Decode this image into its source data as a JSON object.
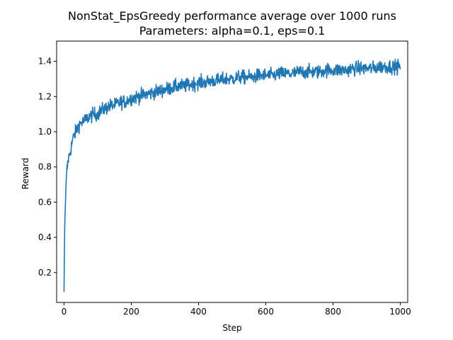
{
  "chart_data": {
    "type": "line",
    "title": "NonStat_EpsGreedy performance average over 1000 runs",
    "subtitle": "Parameters: alpha=0.1, eps=0.1",
    "xlabel": "Step",
    "ylabel": "Reward",
    "xlim": [
      -22,
      1022
    ],
    "ylim": [
      0.03,
      1.515
    ],
    "xticks": [
      0,
      200,
      400,
      600,
      800,
      1000
    ],
    "yticks": [
      0.2,
      0.4,
      0.6,
      0.8,
      1.0,
      1.2,
      1.4
    ],
    "ytick_labels": [
      "0.2",
      "0.4",
      "0.6",
      "0.8",
      "1.0",
      "1.2",
      "1.4"
    ],
    "grid": false,
    "line_color": "#1f77b4",
    "series": [
      {
        "x": [
          0,
          1,
          2,
          3,
          4,
          5,
          6,
          8,
          10,
          12,
          15,
          18,
          20,
          25,
          30,
          35,
          40,
          45,
          50,
          60,
          70,
          80,
          90,
          100,
          110,
          120,
          130,
          140,
          150,
          160,
          170,
          180,
          190,
          200,
          220,
          240,
          260,
          280,
          300,
          320,
          340,
          360,
          380,
          400,
          420,
          440,
          460,
          480,
          500,
          520,
          540,
          560,
          580,
          600,
          620,
          640,
          660,
          680,
          700,
          720,
          740,
          760,
          780,
          800,
          820,
          840,
          860,
          880,
          900,
          920,
          940,
          960,
          980,
          1000
        ],
        "y": [
          0.09,
          0.3,
          0.45,
          0.53,
          0.58,
          0.62,
          0.68,
          0.78,
          0.8,
          0.84,
          0.86,
          0.88,
          0.9,
          0.95,
          0.98,
          1.0,
          1.02,
          1.04,
          1.05,
          1.06,
          1.08,
          1.09,
          1.1,
          1.1,
          1.12,
          1.13,
          1.14,
          1.15,
          1.15,
          1.16,
          1.17,
          1.17,
          1.18,
          1.19,
          1.2,
          1.21,
          1.22,
          1.23,
          1.24,
          1.25,
          1.26,
          1.26,
          1.27,
          1.28,
          1.28,
          1.29,
          1.29,
          1.3,
          1.3,
          1.31,
          1.31,
          1.31,
          1.32,
          1.32,
          1.32,
          1.33,
          1.33,
          1.33,
          1.34,
          1.34,
          1.34,
          1.34,
          1.35,
          1.35,
          1.35,
          1.35,
          1.36,
          1.36,
          1.36,
          1.36,
          1.37,
          1.37,
          1.37,
          1.37
        ]
      }
    ]
  }
}
